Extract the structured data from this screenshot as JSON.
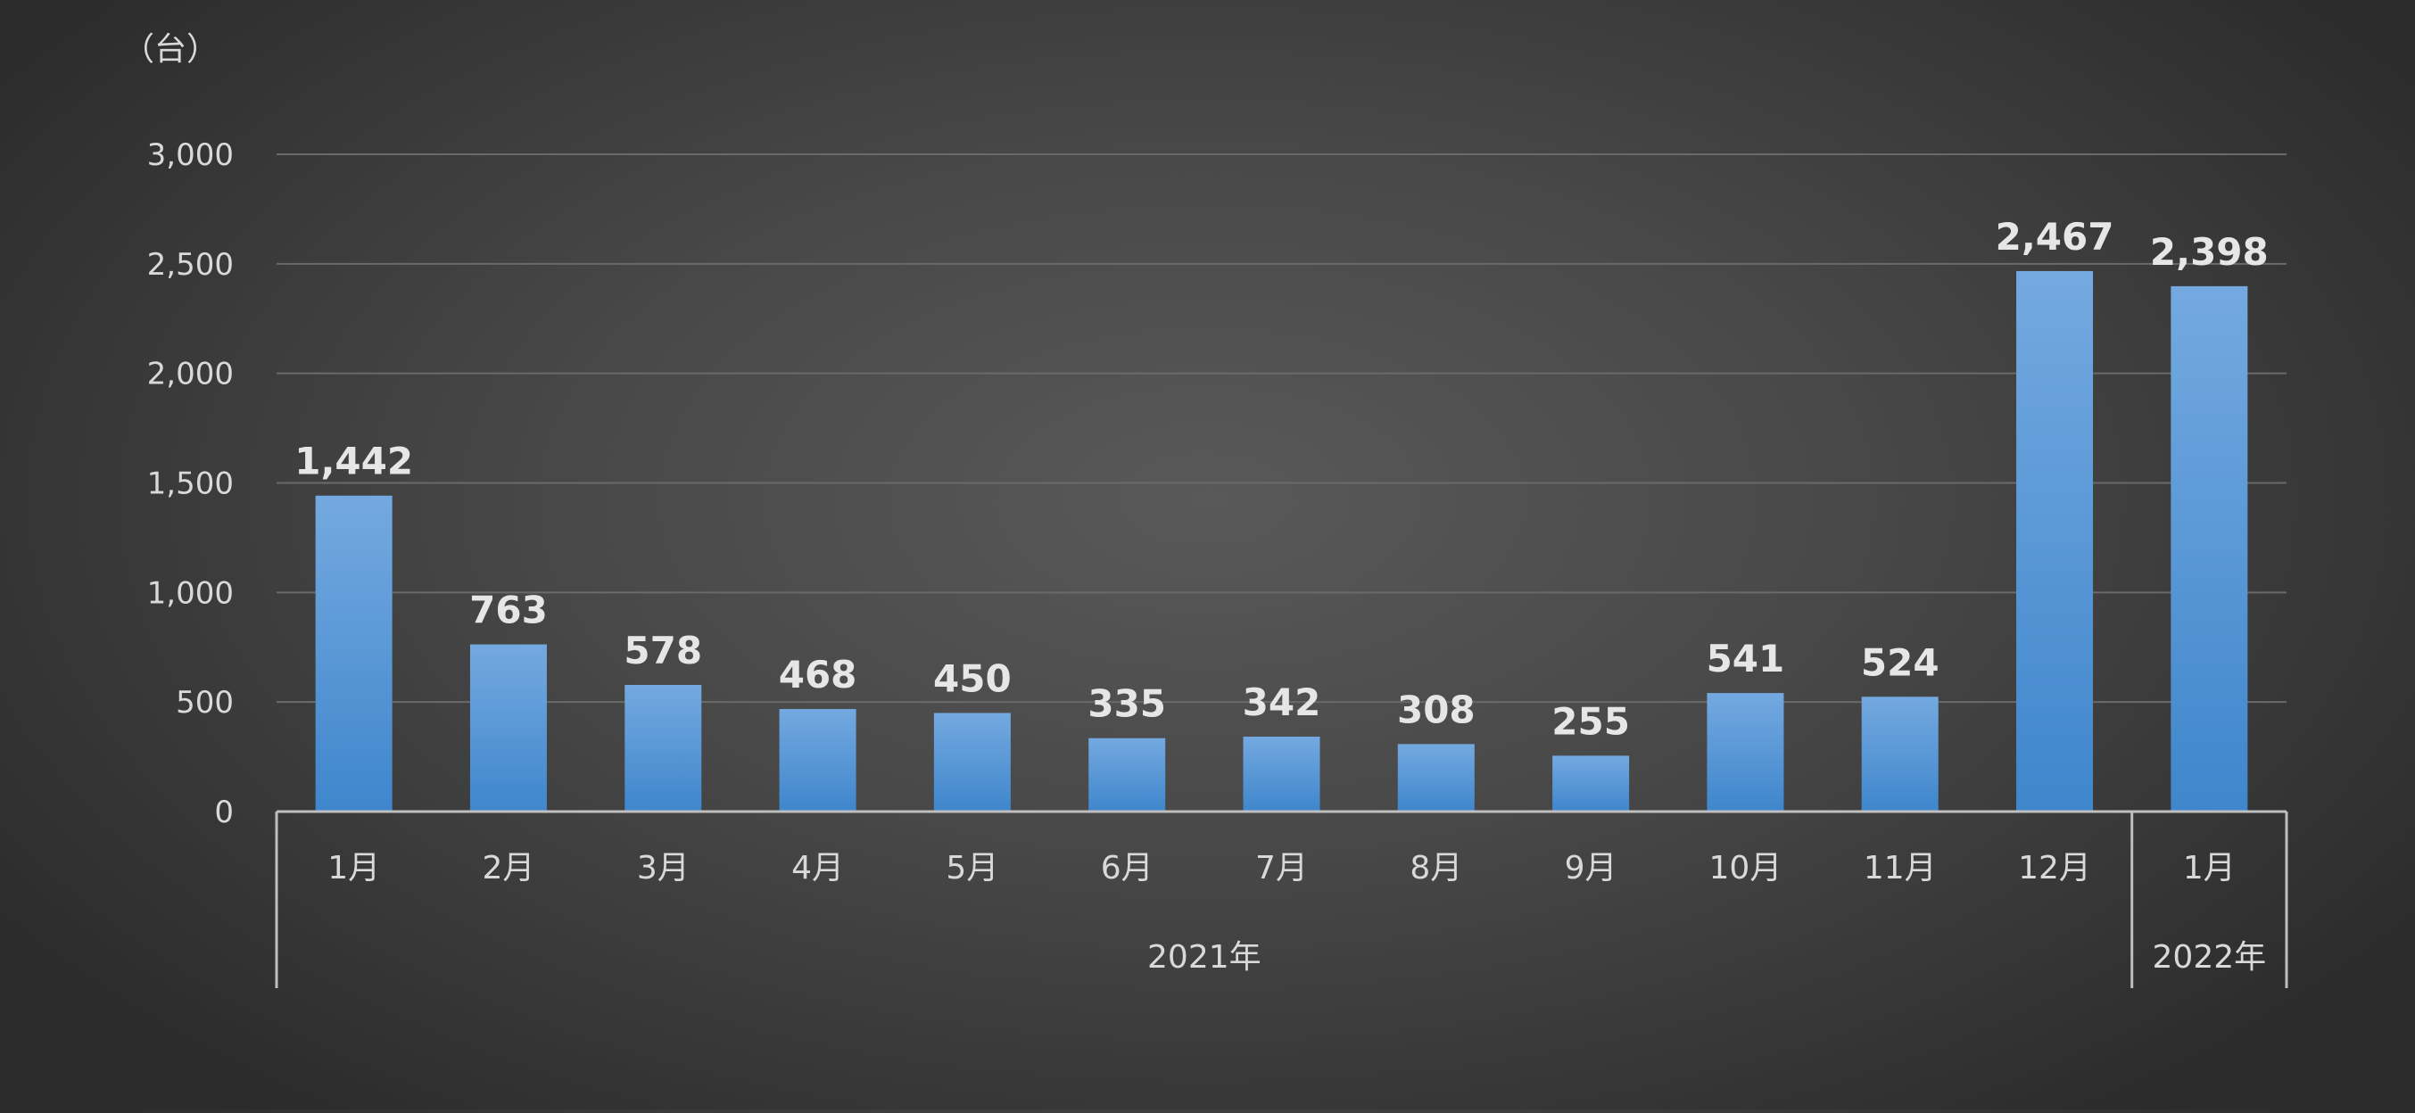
{
  "chart_data": {
    "type": "bar",
    "unit_label": "（台）",
    "categories": [
      "1月",
      "2月",
      "3月",
      "4月",
      "5月",
      "6月",
      "7月",
      "8月",
      "9月",
      "10月",
      "11月",
      "12月",
      "1月"
    ],
    "groups": [
      {
        "label": "2021年",
        "count": 12
      },
      {
        "label": "2022年",
        "count": 1
      }
    ],
    "values": [
      1442,
      763,
      578,
      468,
      450,
      335,
      342,
      308,
      255,
      541,
      524,
      2467,
      2398
    ],
    "data_labels": [
      "1,442",
      "763",
      "578",
      "468",
      "450",
      "335",
      "342",
      "308",
      "255",
      "541",
      "524",
      "2,467",
      "2,398"
    ],
    "y_ticks": [
      0,
      500,
      1000,
      1500,
      2000,
      2500,
      3000
    ],
    "y_tick_labels": [
      "0",
      "500",
      "1,000",
      "1,500",
      "2,000",
      "2,500",
      "3,000"
    ],
    "ylim": [
      0,
      3000
    ],
    "grid": true,
    "legend": "none",
    "colors": {
      "bar_top": "#74a9e0",
      "bar_bottom": "#3f86cc",
      "gridline": "#6a6a6a",
      "axis": "#bfbfbf",
      "text": "#d9d9d9"
    }
  }
}
